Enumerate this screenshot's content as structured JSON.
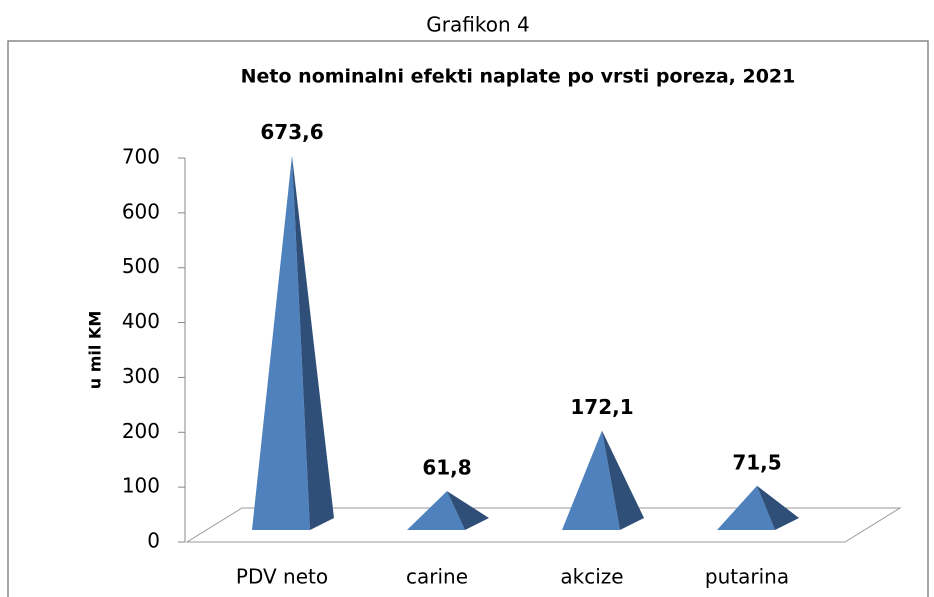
{
  "chart_data": {
    "type": "pyramid",
    "figure_label": "Grafikon 4",
    "title": "Neto nominalni  efekti naplate po vrsti poreza,  2021",
    "y_label": "u mil KM",
    "categories": [
      "PDV neto",
      "carine",
      "akcize",
      "putarina"
    ],
    "values": [
      673.6,
      61.8,
      172.1,
      71.5
    ],
    "value_labels": [
      "673,6",
      "61,8",
      "172,1",
      "71,5"
    ],
    "color": "#4f81bd",
    "ylim": [
      0,
      700
    ],
    "yticks": [
      0,
      100,
      200,
      300,
      400,
      500,
      600,
      700
    ]
  }
}
